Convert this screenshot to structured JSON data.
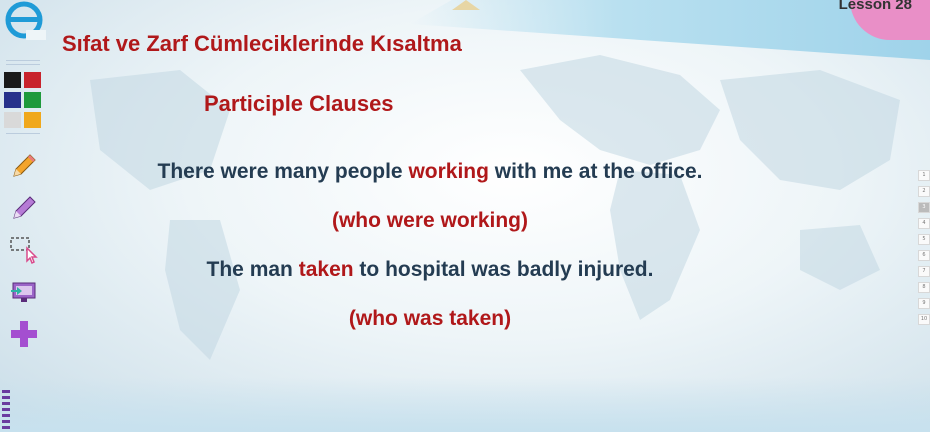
{
  "header": {
    "lesson": "Lesson 28"
  },
  "slide": {
    "title": "Sıfat ve Zarf Cümleciklerinde Kısaltma",
    "subtitle": "Participle Clauses",
    "sentence1": {
      "before": "There were many people ",
      "highlight": "working",
      "after": " with me at the office."
    },
    "sentence1_note": "(who were working)",
    "sentence2": {
      "before": "The man ",
      "highlight": "taken",
      "after": " to hospital was badly injured."
    },
    "sentence2_note": "(who was taken)"
  },
  "toolbar": {
    "colors": [
      "#1a1a1a",
      "#c8232c",
      "#27318b",
      "#1e9a3c",
      "#d9d9d9",
      "#f0a81c"
    ],
    "tools": [
      "pencil-icon",
      "marker-icon",
      "select-icon",
      "screen-icon",
      "add-icon"
    ]
  },
  "pager": {
    "pages": [
      "1",
      "2",
      "3",
      "4",
      "5",
      "6",
      "7",
      "8",
      "9",
      "10"
    ],
    "active": "3"
  },
  "colors": {
    "accent_red": "#b0181a",
    "body_text": "#243c52"
  }
}
